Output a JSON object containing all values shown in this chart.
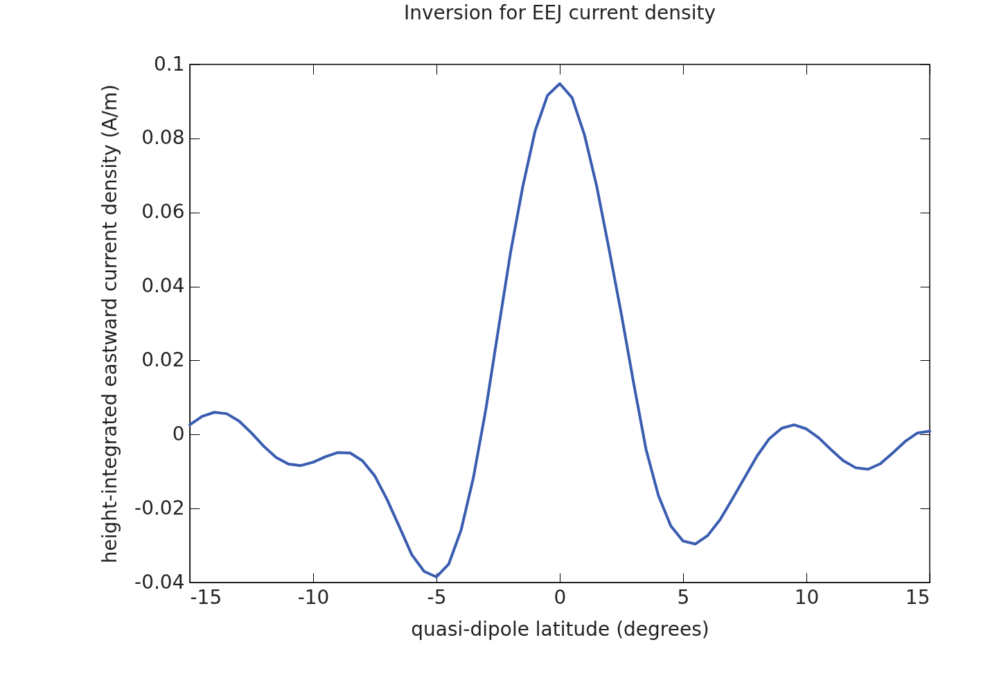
{
  "chart_data": {
    "type": "line",
    "title": "Inversion for EEJ current density",
    "xlabel": "quasi-dipole latitude (degrees)",
    "ylabel": "height-integrated eastward current density (A/m)",
    "x": [
      -15,
      -14.5,
      -14,
      -13.5,
      -13,
      -12.5,
      -12,
      -11.5,
      -11,
      -10.5,
      -10,
      -9.5,
      -9,
      -8.5,
      -8,
      -7.5,
      -7,
      -6.5,
      -6,
      -5.5,
      -5,
      -4.5,
      -4,
      -3.5,
      -3,
      -2.5,
      -2,
      -1.5,
      -1,
      -0.5,
      0,
      0.5,
      1,
      1.5,
      2,
      2.5,
      3,
      3.5,
      4,
      4.5,
      5,
      5.5,
      6,
      6.5,
      7,
      7.5,
      8,
      8.5,
      9,
      9.5,
      10,
      10.5,
      11,
      11.5,
      12,
      12.5,
      13,
      13.5,
      14,
      14.5,
      15
    ],
    "series": [
      {
        "color": "#3a5db0",
        "values": [
          0.0026,
          0.0049,
          0.006,
          0.0056,
          0.0036,
          0.0004,
          -0.0032,
          -0.0062,
          -0.008,
          -0.0084,
          -0.0075,
          -0.006,
          -0.0049,
          -0.005,
          -0.0071,
          -0.0112,
          -0.0176,
          -0.025,
          -0.0325,
          -0.037,
          -0.0385,
          -0.035,
          -0.0258,
          -0.0116,
          0.0067,
          0.028,
          0.049,
          0.067,
          0.082,
          0.0916,
          0.0948,
          0.091,
          0.081,
          0.067,
          0.05,
          0.0324,
          0.0137,
          -0.0041,
          -0.0165,
          -0.0247,
          -0.0288,
          -0.0296,
          -0.0273,
          -0.023,
          -0.0174,
          -0.0116,
          -0.0058,
          -0.0011,
          0.0017,
          0.0026,
          0.0015,
          -0.0009,
          -0.0041,
          -0.0071,
          -0.009,
          -0.0094,
          -0.0079,
          -0.005,
          -0.0019,
          0.0004,
          0.0009
        ]
      }
    ],
    "xlim": [
      -15,
      15
    ],
    "xticks": [
      -15,
      -10,
      -5,
      0,
      5,
      10,
      15
    ],
    "ylim": [
      -0.04,
      0.1
    ],
    "yticks": [
      -0.04,
      -0.02,
      0,
      0.02,
      0.04,
      0.06,
      0.08,
      0.1
    ],
    "grid": false,
    "legend": false,
    "marker": "none",
    "line_style": "solid"
  }
}
